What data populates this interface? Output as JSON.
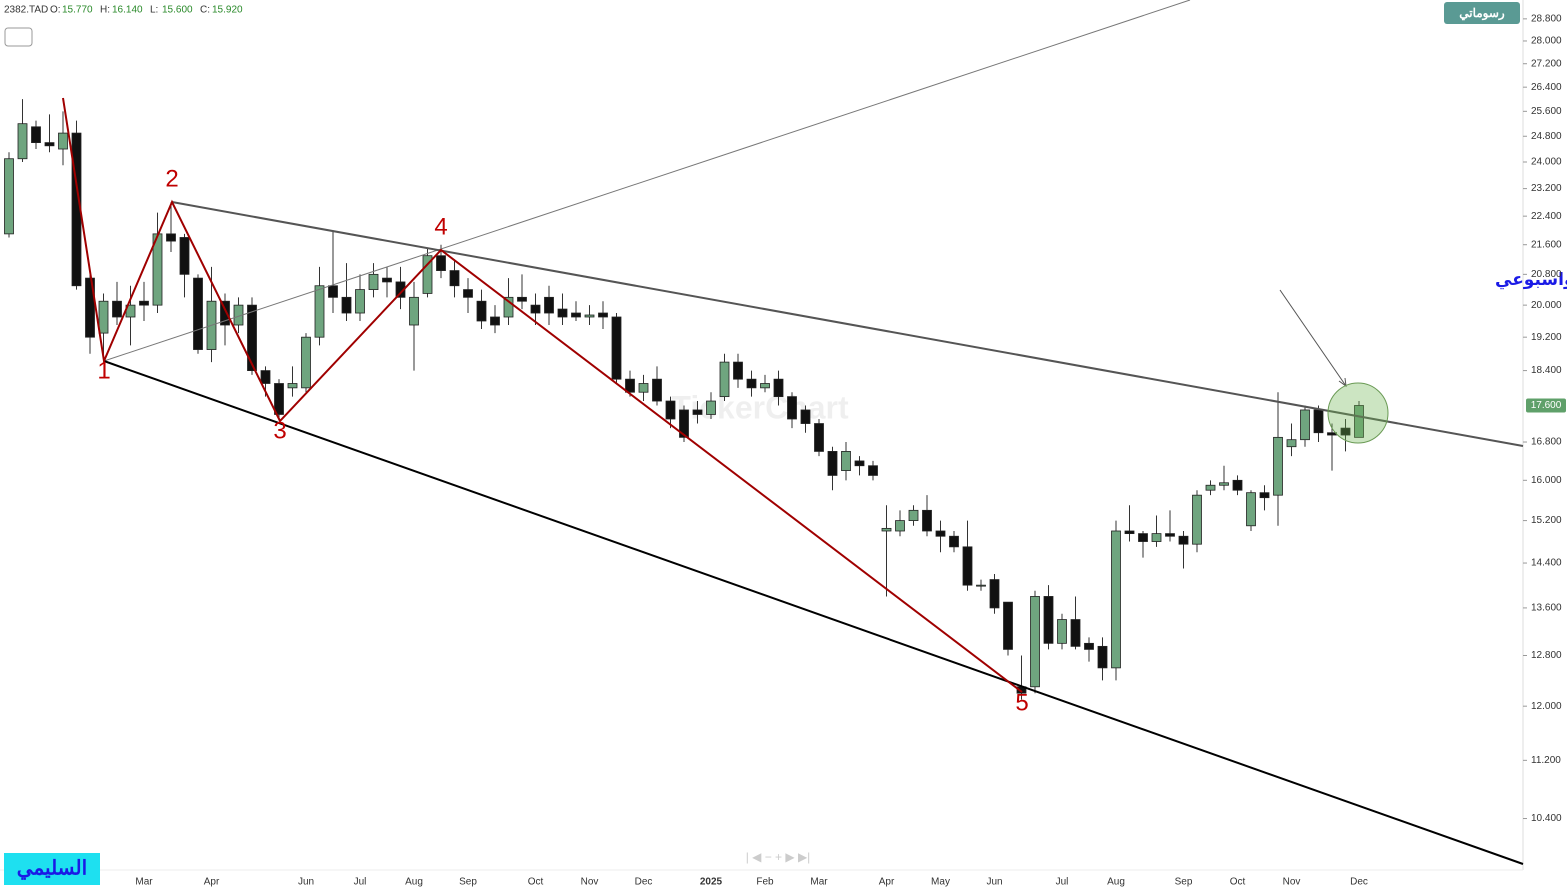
{
  "chart_data": {
    "type": "candlestick",
    "symbol": "2382.TAD",
    "quote": [
      {
        "key": "O:",
        "value": "15.770"
      },
      {
        "key": "H:",
        "value": "16.140"
      },
      {
        "key": "L:",
        "value": "15.600"
      },
      {
        "key": "C:",
        "value": "15.920"
      }
    ],
    "badge": "رسوماتي",
    "watermark": "TickerChart",
    "annotation": "مبروك عليكم ملاك اديس اختراق ذيبه والاغلاق فوقه يومي واسبوعي",
    "author": "السليمي",
    "wave_labels": [
      "1",
      "2",
      "3",
      "4",
      "5"
    ],
    "price_tag": "17.600",
    "log_scale": true,
    "grid": false,
    "up_color": "#6fa57f",
    "down_color": "#111111",
    "ylim": [
      9.74,
      29.5
    ],
    "yticks": [
      {
        "value": 10.4,
        "label": "10.400"
      },
      {
        "value": 11.2,
        "label": "11.200"
      },
      {
        "value": 12,
        "label": "12.000"
      },
      {
        "value": 12.8,
        "label": "12.800"
      },
      {
        "value": 13.6,
        "label": "13.600"
      },
      {
        "value": 14.4,
        "label": "14.400"
      },
      {
        "value": 15.2,
        "label": "15.200"
      },
      {
        "value": 16,
        "label": "16.000"
      },
      {
        "value": 16.8,
        "label": "16.800"
      },
      {
        "value": 18.4,
        "label": "18.400"
      },
      {
        "value": 19.2,
        "label": "19.200"
      },
      {
        "value": 20,
        "label": "20.000"
      },
      {
        "value": 20.8,
        "label": "20.800"
      },
      {
        "value": 21.6,
        "label": "21.600"
      },
      {
        "value": 22.4,
        "label": "22.400"
      },
      {
        "value": 23.2,
        "label": "23.200"
      },
      {
        "value": 24,
        "label": "24.000"
      },
      {
        "value": 24.8,
        "label": "24.800"
      },
      {
        "value": 25.6,
        "label": "25.600"
      },
      {
        "value": 26.4,
        "label": "26.400"
      },
      {
        "value": 27.2,
        "label": "27.200"
      },
      {
        "value": 28,
        "label": "28.000"
      },
      {
        "value": 28.8,
        "label": "28.800"
      }
    ],
    "categories": [
      null,
      null,
      null,
      null,
      null,
      null,
      null,
      null,
      null,
      null,
      "Mar",
      null,
      null,
      null,
      null,
      "Apr",
      null,
      null,
      null,
      null,
      null,
      null,
      "Jun",
      null,
      null,
      null,
      "Jul",
      null,
      null,
      null,
      "Aug",
      null,
      null,
      null,
      "Sep",
      null,
      null,
      null,
      null,
      "Oct",
      null,
      null,
      null,
      "Nov",
      null,
      null,
      null,
      "Dec",
      null,
      null,
      null,
      null,
      "2025",
      null,
      null,
      null,
      "Feb",
      null,
      null,
      null,
      "Mar",
      null,
      null,
      null,
      null,
      "Apr",
      null,
      null,
      null,
      "May",
      null,
      null,
      null,
      "Jun",
      null,
      null,
      null,
      null,
      "Jul",
      null,
      null,
      null,
      "Aug",
      null,
      null,
      null,
      null,
      "Sep",
      null,
      null,
      null,
      "Oct",
      null,
      null,
      null,
      "Nov",
      null,
      null,
      null,
      null,
      "Dec"
    ],
    "open": [
      21.9,
      24.1,
      25.1,
      24.6,
      24.4,
      24.9,
      20.7,
      19.3,
      20.1,
      19.7,
      20.1,
      20.0,
      21.9,
      21.8,
      20.7,
      18.9,
      20.1,
      19.5,
      20.0,
      18.4,
      18.1,
      18.0,
      18.0,
      19.2,
      20.5,
      20.2,
      19.8,
      20.4,
      20.7,
      20.6,
      19.5,
      20.3,
      21.3,
      20.9,
      20.4,
      20.1,
      19.7,
      19.7,
      20.2,
      20.0,
      20.2,
      19.9,
      19.8,
      19.7,
      19.8,
      19.7,
      18.2,
      17.9,
      18.2,
      17.7,
      17.5,
      17.5,
      17.4,
      17.8,
      18.6,
      18.2,
      18.0,
      18.2,
      17.8,
      17.5,
      17.2,
      16.6,
      16.2,
      16.4,
      16.3,
      15.0,
      15.0,
      15.2,
      15.4,
      15.0,
      14.9,
      14.7,
      14.0,
      14.1,
      13.7,
      12.3,
      12.3,
      13.8,
      13.0,
      13.4,
      13.0,
      12.95,
      12.6,
      15.0,
      14.95,
      14.8,
      14.95,
      14.9,
      14.75,
      15.8,
      15.9,
      16.0,
      15.1,
      15.75,
      15.7,
      16.7,
      16.85,
      17.5,
      17.0,
      17.1,
      16.9
    ],
    "high": [
      24.3,
      26.0,
      25.3,
      25.5,
      25.6,
      25.3,
      20.8,
      20.3,
      20.6,
      20.5,
      20.6,
      22.5,
      22.8,
      21.9,
      20.8,
      21.0,
      20.3,
      20.2,
      20.2,
      18.5,
      18.2,
      18.5,
      19.3,
      21.0,
      22.0,
      21.1,
      20.8,
      21.1,
      21.0,
      21.0,
      20.6,
      21.5,
      21.6,
      21.2,
      20.7,
      20.4,
      20.0,
      20.7,
      20.8,
      20.3,
      20.5,
      20.3,
      20.1,
      20.0,
      20.1,
      19.8,
      18.4,
      18.3,
      18.5,
      17.8,
      17.6,
      17.7,
      17.9,
      18.8,
      18.8,
      18.4,
      18.3,
      18.4,
      17.9,
      17.6,
      17.3,
      16.7,
      16.8,
      16.5,
      16.4,
      15.5,
      15.4,
      15.5,
      15.7,
      15.2,
      15.0,
      15.2,
      14.1,
      14.2,
      13.7,
      12.8,
      13.9,
      14.0,
      13.5,
      13.8,
      13.1,
      13.1,
      15.2,
      15.5,
      15.0,
      15.3,
      15.4,
      15.0,
      15.8,
      16.0,
      16.3,
      16.1,
      15.8,
      15.9,
      17.9,
      17.2,
      17.6,
      17.6,
      17.2,
      17.3,
      17.7
    ],
    "low": [
      21.8,
      24.0,
      24.4,
      24.3,
      23.9,
      20.4,
      18.8,
      18.7,
      19.5,
      19.0,
      19.6,
      19.8,
      21.4,
      20.2,
      18.8,
      18.6,
      19.0,
      19.3,
      18.3,
      17.8,
      17.3,
      17.8,
      17.9,
      19.0,
      19.8,
      19.6,
      19.6,
      20.2,
      20.2,
      19.9,
      18.4,
      20.2,
      20.7,
      20.2,
      19.8,
      19.4,
      19.3,
      19.5,
      19.9,
      19.5,
      19.5,
      19.5,
      19.6,
      19.5,
      19.4,
      18.1,
      17.8,
      17.7,
      17.6,
      17.1,
      16.8,
      17.2,
      17.3,
      17.7,
      18.0,
      17.8,
      17.9,
      17.6,
      17.1,
      17.0,
      16.5,
      15.8,
      16.0,
      16.1,
      16.0,
      13.8,
      14.9,
      15.1,
      14.9,
      14.6,
      14.6,
      13.9,
      13.9,
      13.5,
      12.8,
      12.1,
      12.2,
      12.9,
      12.9,
      12.9,
      12.7,
      12.4,
      12.4,
      14.8,
      14.5,
      14.7,
      14.8,
      14.3,
      14.6,
      15.7,
      15.8,
      15.7,
      15.0,
      15.4,
      15.1,
      16.5,
      16.7,
      16.8,
      16.2,
      16.6,
      16.9
    ],
    "close": [
      24.1,
      25.2,
      24.6,
      24.5,
      24.9,
      20.5,
      19.2,
      20.1,
      19.7,
      20.0,
      20.0,
      21.9,
      21.7,
      20.8,
      18.9,
      20.1,
      19.5,
      20.0,
      18.4,
      18.1,
      17.4,
      18.1,
      19.2,
      20.5,
      20.2,
      19.8,
      20.4,
      20.8,
      20.6,
      20.2,
      20.2,
      21.3,
      20.9,
      20.5,
      20.2,
      19.6,
      19.5,
      20.2,
      20.1,
      19.8,
      19.8,
      19.7,
      19.7,
      19.75,
      19.7,
      18.2,
      17.9,
      18.1,
      17.7,
      17.3,
      16.9,
      17.4,
      17.7,
      18.6,
      18.2,
      18.0,
      18.1,
      17.8,
      17.3,
      17.2,
      16.6,
      16.1,
      16.6,
      16.3,
      16.1,
      15.05,
      15.2,
      15.4,
      15.0,
      14.9,
      14.7,
      14.0,
      14.0,
      13.6,
      12.9,
      12.2,
      13.8,
      13.0,
      13.4,
      12.95,
      12.9,
      12.6,
      15.0,
      14.95,
      14.8,
      14.95,
      14.9,
      14.75,
      15.7,
      15.9,
      15.95,
      15.8,
      15.75,
      15.65,
      16.9,
      16.85,
      17.5,
      17.0,
      16.95,
      16.95,
      17.6
    ]
  }
}
